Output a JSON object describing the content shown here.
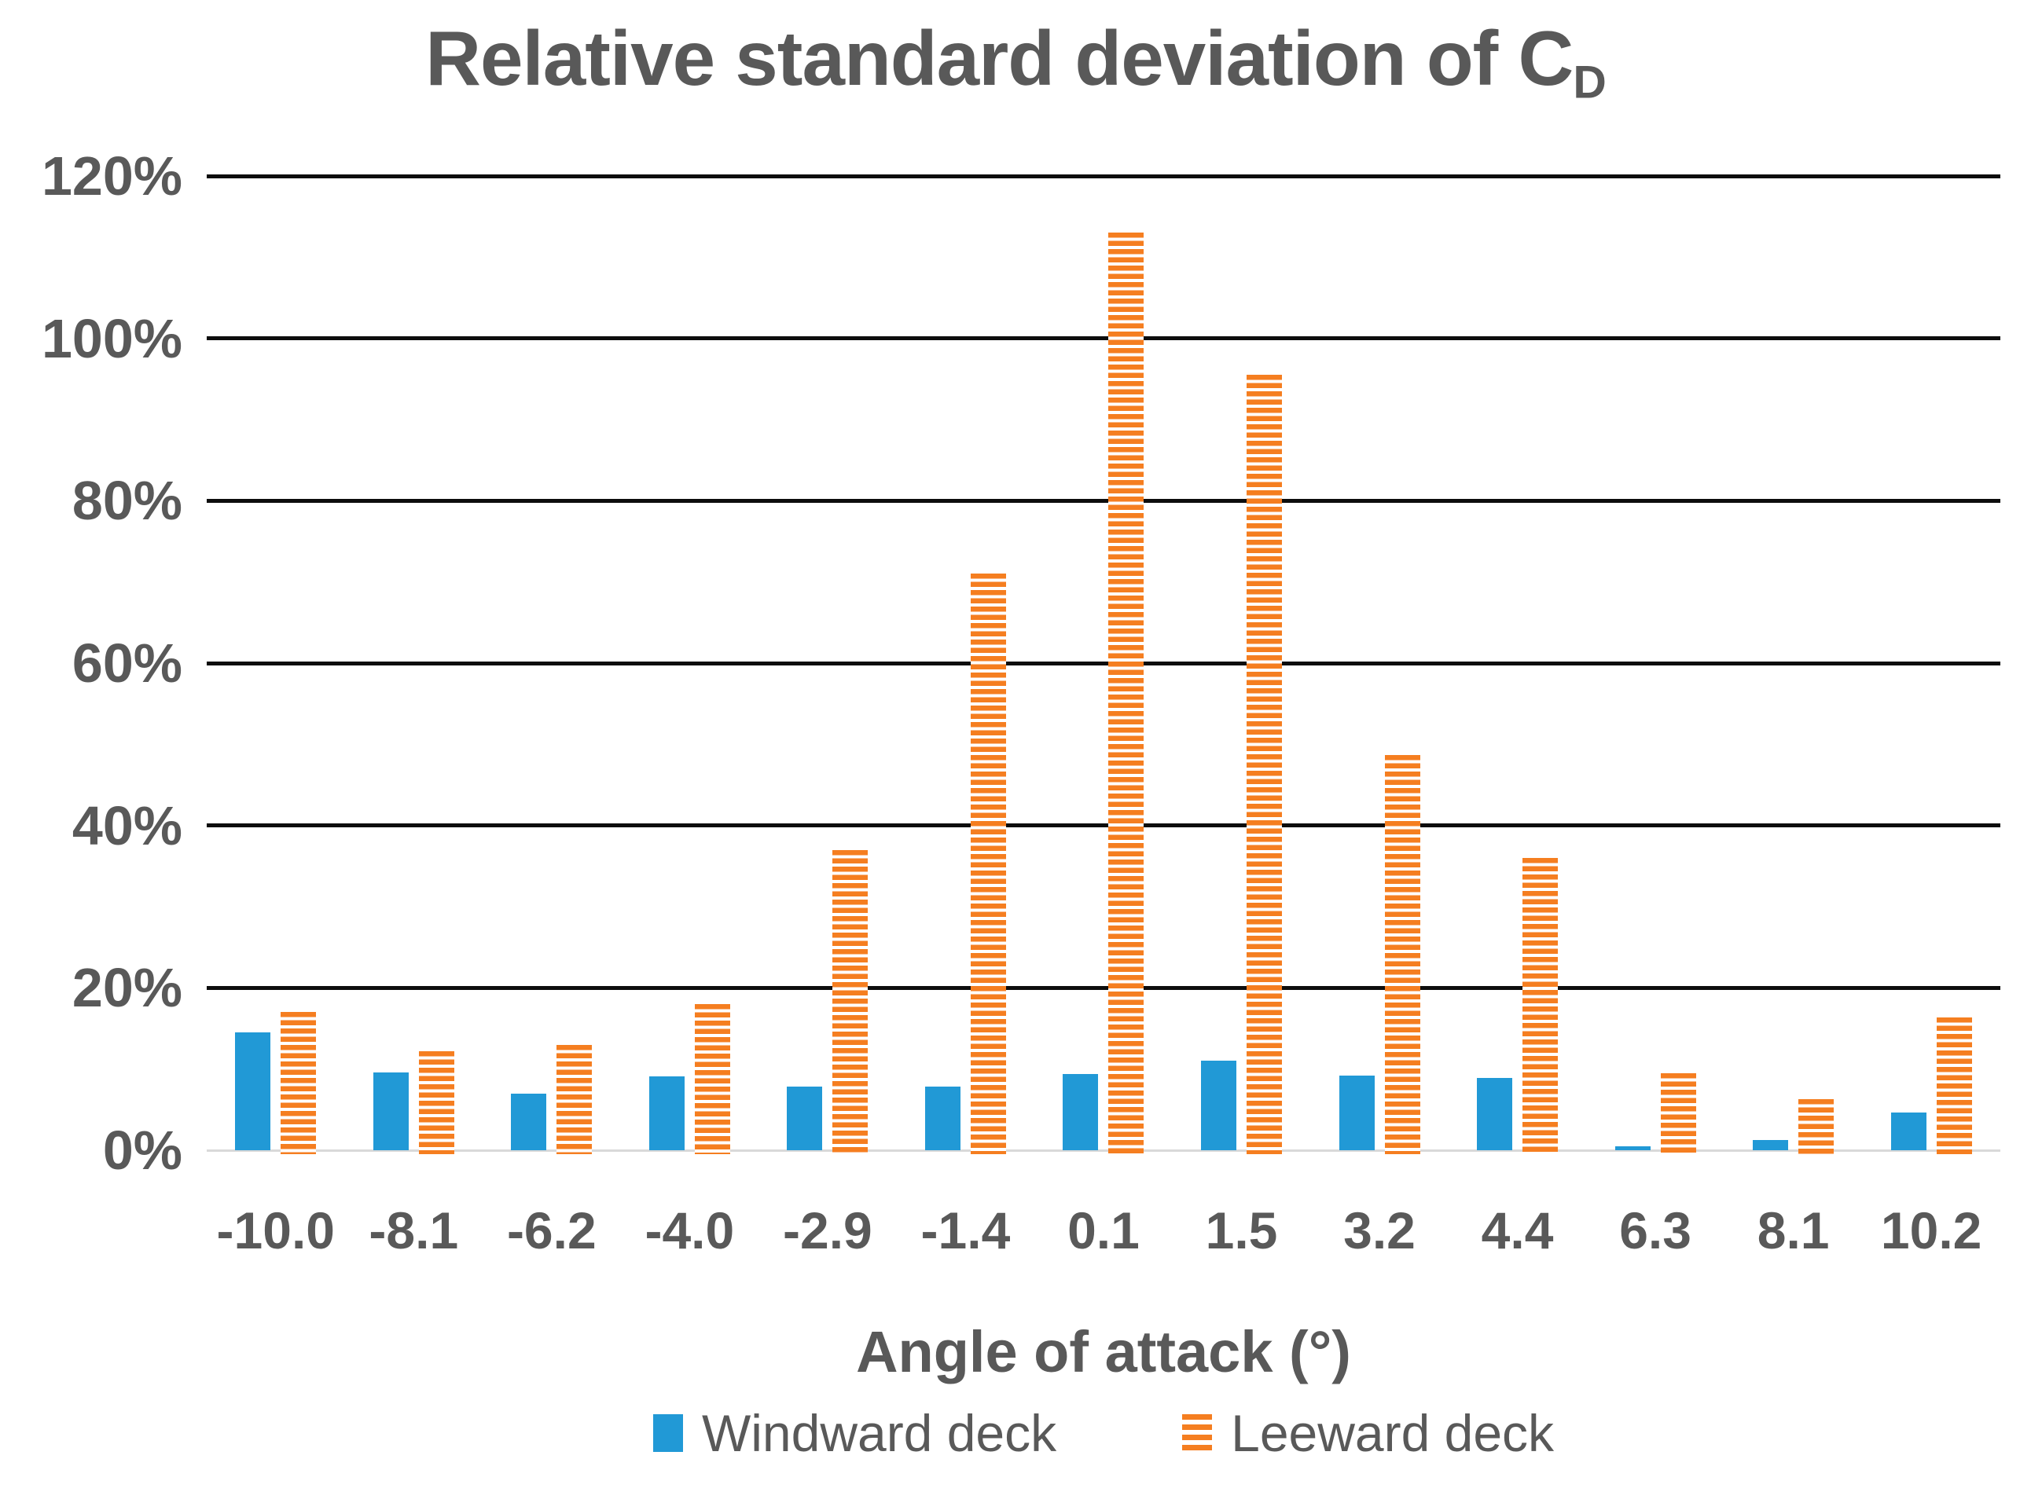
{
  "title": {
    "main": "Relative standard deviation of C",
    "subscript": "D"
  },
  "y_axis": {
    "tick_labels": [
      "0%",
      "20%",
      "40%",
      "60%",
      "80%",
      "100%",
      "120%"
    ],
    "tick_values": [
      0,
      20,
      40,
      60,
      80,
      100,
      120
    ]
  },
  "x_axis": {
    "title": "Angle of attack (°)",
    "tick_labels": [
      "-10.0",
      "-8.1",
      "-6.2",
      "-4.0",
      "-2.9",
      "-1.4",
      "0.1",
      "1.5",
      "3.2",
      "4.4",
      "6.3",
      "8.1",
      "10.2"
    ]
  },
  "legend": [
    {
      "label": "Windward deck",
      "series": "windward"
    },
    {
      "label": "Leeward deck",
      "series": "leeward"
    }
  ],
  "colors": {
    "windward": "#2199D6",
    "leeward": "#F57E20",
    "text": "#595959",
    "gridline": "#0d0d0d",
    "zero_line": "#D9D9D9",
    "background": "#FFFFFF"
  },
  "chart_data": {
    "type": "bar",
    "title": "Relative standard deviation of C_D",
    "xlabel": "Angle of attack (°)",
    "ylabel": "",
    "categories": [
      -10.0,
      -8.1,
      -6.2,
      -4.0,
      -2.9,
      -1.4,
      0.1,
      1.5,
      3.2,
      4.4,
      6.3,
      8.1,
      10.2
    ],
    "series": [
      {
        "name": "Windward deck",
        "values": [
          14.5,
          9.6,
          7.0,
          9.1,
          7.8,
          7.8,
          9.4,
          11.0,
          9.2,
          8.9,
          0.5,
          1.3,
          4.6
        ]
      },
      {
        "name": "Leeward deck",
        "values": [
          17.0,
          12.2,
          13.0,
          18.0,
          37.0,
          71.0,
          113.0,
          95.5,
          48.7,
          36.0,
          9.5,
          6.3,
          16.4
        ]
      }
    ],
    "ylim": [
      0,
      120
    ],
    "y_tick_step": 20,
    "y_tick_format": "percent",
    "grid": "horizontal",
    "legend_position": "bottom"
  }
}
